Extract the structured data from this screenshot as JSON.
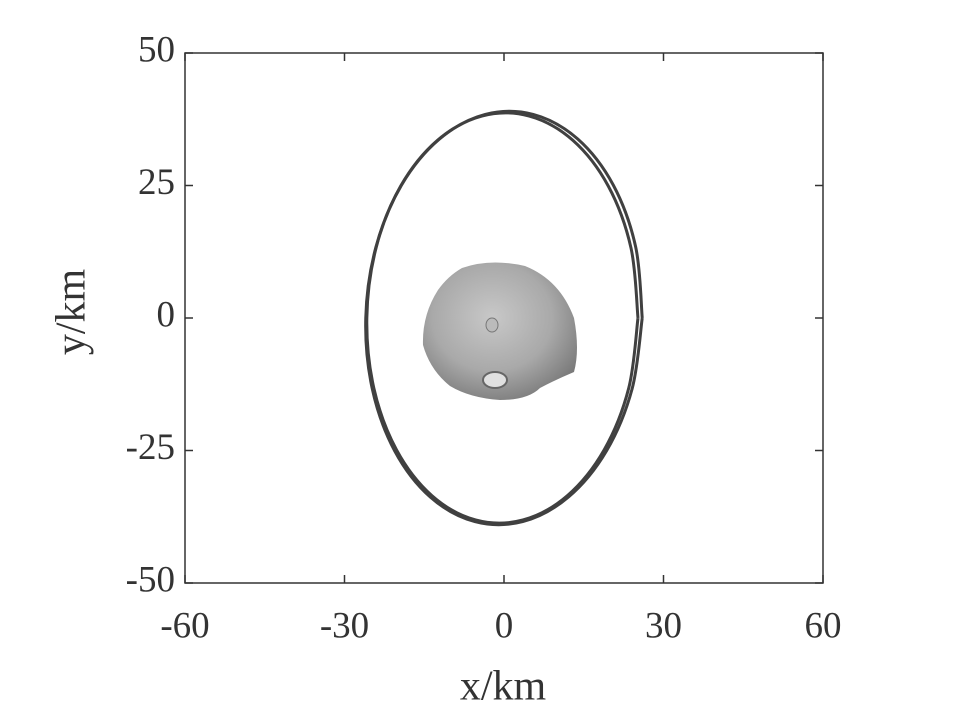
{
  "chart_data": {
    "type": "line",
    "xlabel": "x/km",
    "ylabel": "y/km",
    "xlim": [
      -60,
      60
    ],
    "xticks": [
      -60,
      -30,
      0,
      30,
      60
    ],
    "ylim": [
      -50,
      50
    ],
    "yticks": [
      -50,
      -25,
      0,
      25,
      50
    ],
    "grid": false,
    "series": [
      {
        "color": "#404040",
        "x": [
          26,
          24.78,
          20.56,
          13.87,
          5.5,
          -3.54,
          -12.13,
          -19.28,
          -24.1,
          -26,
          -24.78,
          -20.56,
          -13.87,
          -5.5,
          3.54,
          12.13,
          19.28,
          24.1,
          26
        ],
        "values": [
          0,
          13.34,
          25.07,
          33.77,
          38.41,
          38.41,
          33.77,
          25.07,
          13.34,
          0,
          -13.34,
          -25.07,
          -33.77,
          -38.41,
          -38.41,
          -33.77,
          -25.07,
          -13.34,
          0
        ]
      },
      {
        "color": "#404040",
        "x": [
          25.2,
          23.88,
          19.62,
          12.97,
          4.73,
          -4.15,
          -12.53,
          -19.44,
          -24.06,
          -25.8,
          -24.48,
          -20.22,
          -13.57,
          -5.33,
          3.55,
          11.93,
          18.84,
          23.46,
          25.2
        ],
        "values": [
          0,
          13.24,
          24.88,
          33.51,
          38.11,
          38.11,
          33.51,
          24.88,
          13.24,
          0,
          -13.24,
          -24.88,
          -33.51,
          -38.11,
          -38.11,
          -33.51,
          -24.88,
          -13.24,
          0
        ]
      }
    ]
  }
}
